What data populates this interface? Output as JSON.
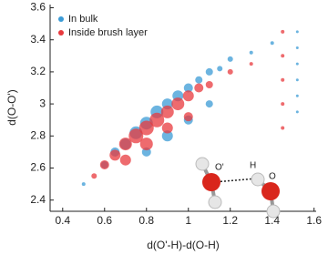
{
  "chart_data": {
    "type": "scatter",
    "x_label": "d(O'-H)-d(O-H)",
    "y_label": "d(O-O')",
    "xlim": [
      0.34,
      1.61
    ],
    "ylim": [
      2.33,
      3.62
    ],
    "xticks": [
      0.4,
      0.6,
      0.8,
      1,
      1.2,
      1.4,
      1.6
    ],
    "yticks": [
      2.4,
      2.6,
      2.8,
      3,
      3.2,
      3.4,
      3.6
    ],
    "legend": "upper-left",
    "annotations": [
      "O'",
      "H",
      "O"
    ],
    "series": [
      {
        "name": "In bulk",
        "color": "#3b9bd6",
        "x": [
          0.5,
          0.6,
          0.65,
          0.7,
          0.75,
          0.8,
          0.85,
          0.9,
          0.95,
          1.0,
          1.05,
          1.1,
          1.15,
          1.2,
          1.3,
          1.4,
          1.52,
          1.52,
          1.52,
          1.52,
          1.52,
          1.52,
          0.8,
          0.9,
          1.0,
          1.1
        ],
        "values": [
          2.5,
          2.62,
          2.7,
          2.75,
          2.82,
          2.88,
          2.95,
          3.0,
          3.05,
          3.1,
          3.15,
          3.2,
          3.22,
          3.28,
          3.32,
          3.38,
          2.95,
          3.05,
          3.15,
          3.25,
          3.35,
          3.45,
          2.7,
          2.8,
          2.9,
          3.0
        ],
        "sizes": [
          2,
          4,
          5,
          6,
          7,
          7,
          7,
          6,
          6,
          5,
          4,
          4,
          3,
          3,
          2,
          2,
          1.5,
          1.5,
          1.5,
          1.5,
          1.5,
          1.5,
          5,
          6,
          5,
          4
        ]
      },
      {
        "name": "Inside brush layer",
        "color": "#e8393d",
        "x": [
          0.55,
          0.6,
          0.65,
          0.7,
          0.75,
          0.8,
          0.85,
          0.9,
          0.95,
          1.0,
          1.05,
          1.1,
          1.2,
          1.3,
          1.45,
          1.45,
          1.45,
          1.45,
          1.45,
          0.7,
          0.8,
          0.9,
          1.0
        ],
        "values": [
          2.55,
          2.62,
          2.68,
          2.75,
          2.8,
          2.85,
          2.9,
          2.95,
          3.0,
          3.05,
          3.1,
          3.12,
          3.2,
          3.25,
          2.85,
          3.0,
          3.15,
          3.3,
          3.45,
          2.65,
          2.75,
          2.85,
          2.92
        ],
        "sizes": [
          3,
          5,
          6,
          7,
          8,
          8,
          8,
          7,
          7,
          6,
          5,
          4,
          3,
          2,
          2,
          2,
          2,
          2,
          2,
          6,
          7,
          6,
          5
        ]
      }
    ]
  }
}
